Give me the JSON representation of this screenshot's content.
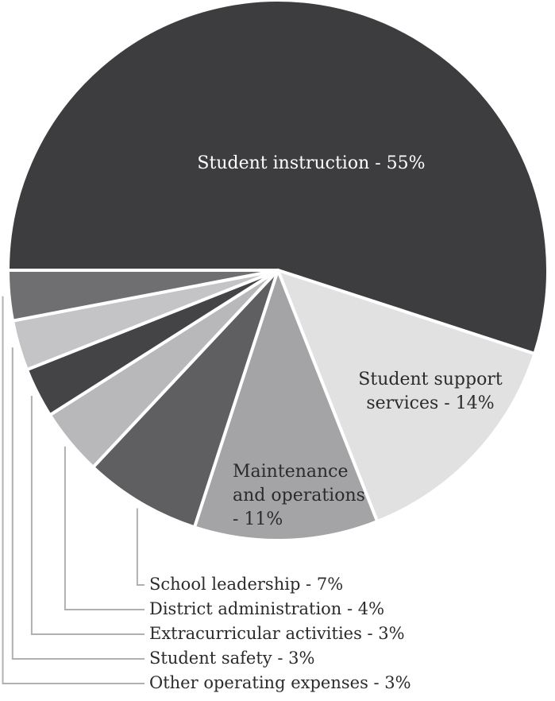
{
  "chart_data": {
    "type": "pie",
    "title": "",
    "slices": [
      {
        "label": "Student instruction",
        "value": 55,
        "text": "Student instruction - 55%",
        "color": "#3d3d3f"
      },
      {
        "label": "Student support services",
        "value": 14,
        "text_lines": [
          "Student support",
          "services - 14%"
        ],
        "color": "#e1e1e2"
      },
      {
        "label": "Maintenance and operations",
        "value": 11,
        "text_lines": [
          "Maintenance",
          "and operations",
          "- 11%"
        ],
        "color": "#a4a4a6"
      },
      {
        "label": "School leadership",
        "value": 7,
        "text": "School leadership - 7%",
        "color": "#5f5f61"
      },
      {
        "label": "District administration",
        "value": 4,
        "text": "District administration - 4%",
        "color": "#b8b8ba"
      },
      {
        "label": "Extracurricular activities",
        "value": 3,
        "text": "Extracurricular activities - 3%",
        "color": "#444446"
      },
      {
        "label": "Student safety",
        "value": 3,
        "text": "Student safety - 3%",
        "color": "#c4c4c6"
      },
      {
        "label": "Other operating expenses",
        "value": 3,
        "text": "Other operating expenses - 3%",
        "color": "#6f6f71"
      }
    ]
  }
}
